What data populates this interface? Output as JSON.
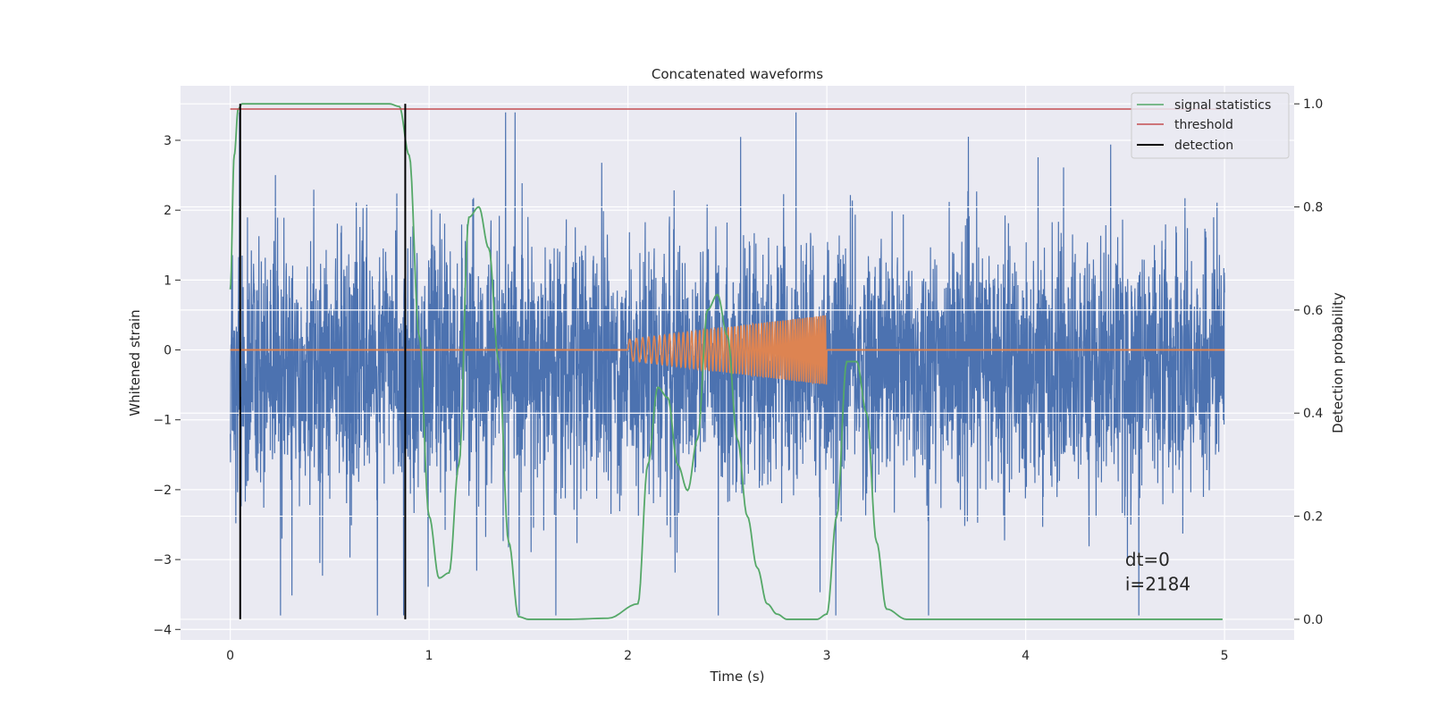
{
  "chart_data": {
    "type": "line",
    "title": "Concatenated waveforms",
    "xlabel": "Time (s)",
    "ylabel": "Whitened strain",
    "y2label": "Detection probability",
    "xlim": [
      -0.25,
      5.35
    ],
    "ylim": [
      -4.15,
      3.78
    ],
    "y2lim": [
      -0.04,
      1.035
    ],
    "x_ticks": [
      0,
      1,
      2,
      3,
      4,
      5
    ],
    "y_ticks": [
      -4,
      -3,
      -2,
      -1,
      0,
      1,
      2,
      3
    ],
    "y2_ticks": [
      0.0,
      0.2,
      0.4,
      0.6,
      0.8,
      1.0
    ],
    "y2_tick_labels": [
      "0.0",
      "0.2",
      "0.4",
      "0.6",
      "0.8",
      "1.0"
    ],
    "grid": true,
    "legend_position": "top-right",
    "colors": {
      "strain": "#4c72b0",
      "injected": "#dd8452",
      "signal_statistics": "#55a868",
      "threshold": "#c44e52",
      "detection": "#000000",
      "background": "#eaeaf2",
      "grid": "#ffffff"
    },
    "series": [
      {
        "name": "",
        "axis": "left",
        "kind": "noise",
        "x_range": [
          0,
          5
        ],
        "samples": 4096,
        "typical_range": [
          -0.9,
          0.5
        ],
        "peak_max": 3.4,
        "peak_min": -3.8
      },
      {
        "name": "",
        "axis": "left",
        "kind": "chirp",
        "x_range": [
          2.0,
          3.0
        ],
        "amplitude_start": 0.15,
        "amplitude_end": 0.5,
        "baseline": 0,
        "baseline_range": [
          0,
          5
        ]
      },
      {
        "name": "signal statistics",
        "axis": "right",
        "x": [
          0.0,
          0.02,
          0.04,
          0.06,
          0.1,
          0.2,
          0.5,
          0.8,
          0.85,
          0.9,
          0.95,
          1.0,
          1.05,
          1.1,
          1.15,
          1.2,
          1.25,
          1.3,
          1.35,
          1.4,
          1.45,
          1.5,
          1.7,
          1.9,
          2.05,
          2.1,
          2.15,
          2.2,
          2.25,
          2.3,
          2.35,
          2.4,
          2.45,
          2.5,
          2.55,
          2.6,
          2.65,
          2.7,
          2.75,
          2.8,
          2.85,
          2.9,
          2.95,
          3.0,
          3.05,
          3.1,
          3.15,
          3.2,
          3.25,
          3.3,
          3.4,
          3.6,
          4.0,
          4.5,
          4.99
        ],
        "values": [
          0.64,
          0.9,
          0.99,
          1.0,
          1.0,
          1.0,
          1.0,
          1.0,
          0.995,
          0.9,
          0.55,
          0.2,
          0.08,
          0.09,
          0.3,
          0.78,
          0.8,
          0.72,
          0.5,
          0.15,
          0.005,
          0.0,
          0.0,
          0.002,
          0.03,
          0.3,
          0.45,
          0.43,
          0.3,
          0.25,
          0.35,
          0.6,
          0.63,
          0.55,
          0.35,
          0.2,
          0.1,
          0.03,
          0.01,
          0.0,
          0.0,
          0.0,
          0.0,
          0.01,
          0.2,
          0.5,
          0.5,
          0.4,
          0.15,
          0.02,
          0.0,
          0.0,
          0.0,
          0.0,
          0.0
        ]
      },
      {
        "name": "threshold",
        "axis": "right",
        "x": [
          0,
          5
        ],
        "values": [
          0.99,
          0.99
        ]
      },
      {
        "name": "detection",
        "axis": "right",
        "vertical_lines_at": [
          0.05,
          0.88
        ],
        "span": [
          0.0,
          1.0
        ]
      }
    ],
    "annotations": [
      {
        "text": "dt=0",
        "x": 4.5,
        "y": -3.0
      },
      {
        "text": "i=2184",
        "x": 4.5,
        "y": -3.35
      }
    ]
  }
}
